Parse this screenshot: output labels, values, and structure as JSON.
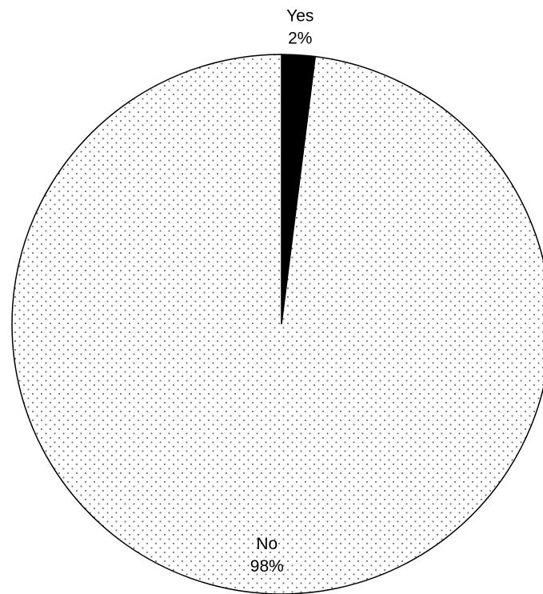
{
  "chart_data": {
    "type": "pie",
    "categories": [
      "Yes",
      "No"
    ],
    "values": [
      2,
      98
    ],
    "value_labels": [
      "2%",
      "98%"
    ],
    "colors": [
      "#000000",
      "dotted"
    ]
  }
}
